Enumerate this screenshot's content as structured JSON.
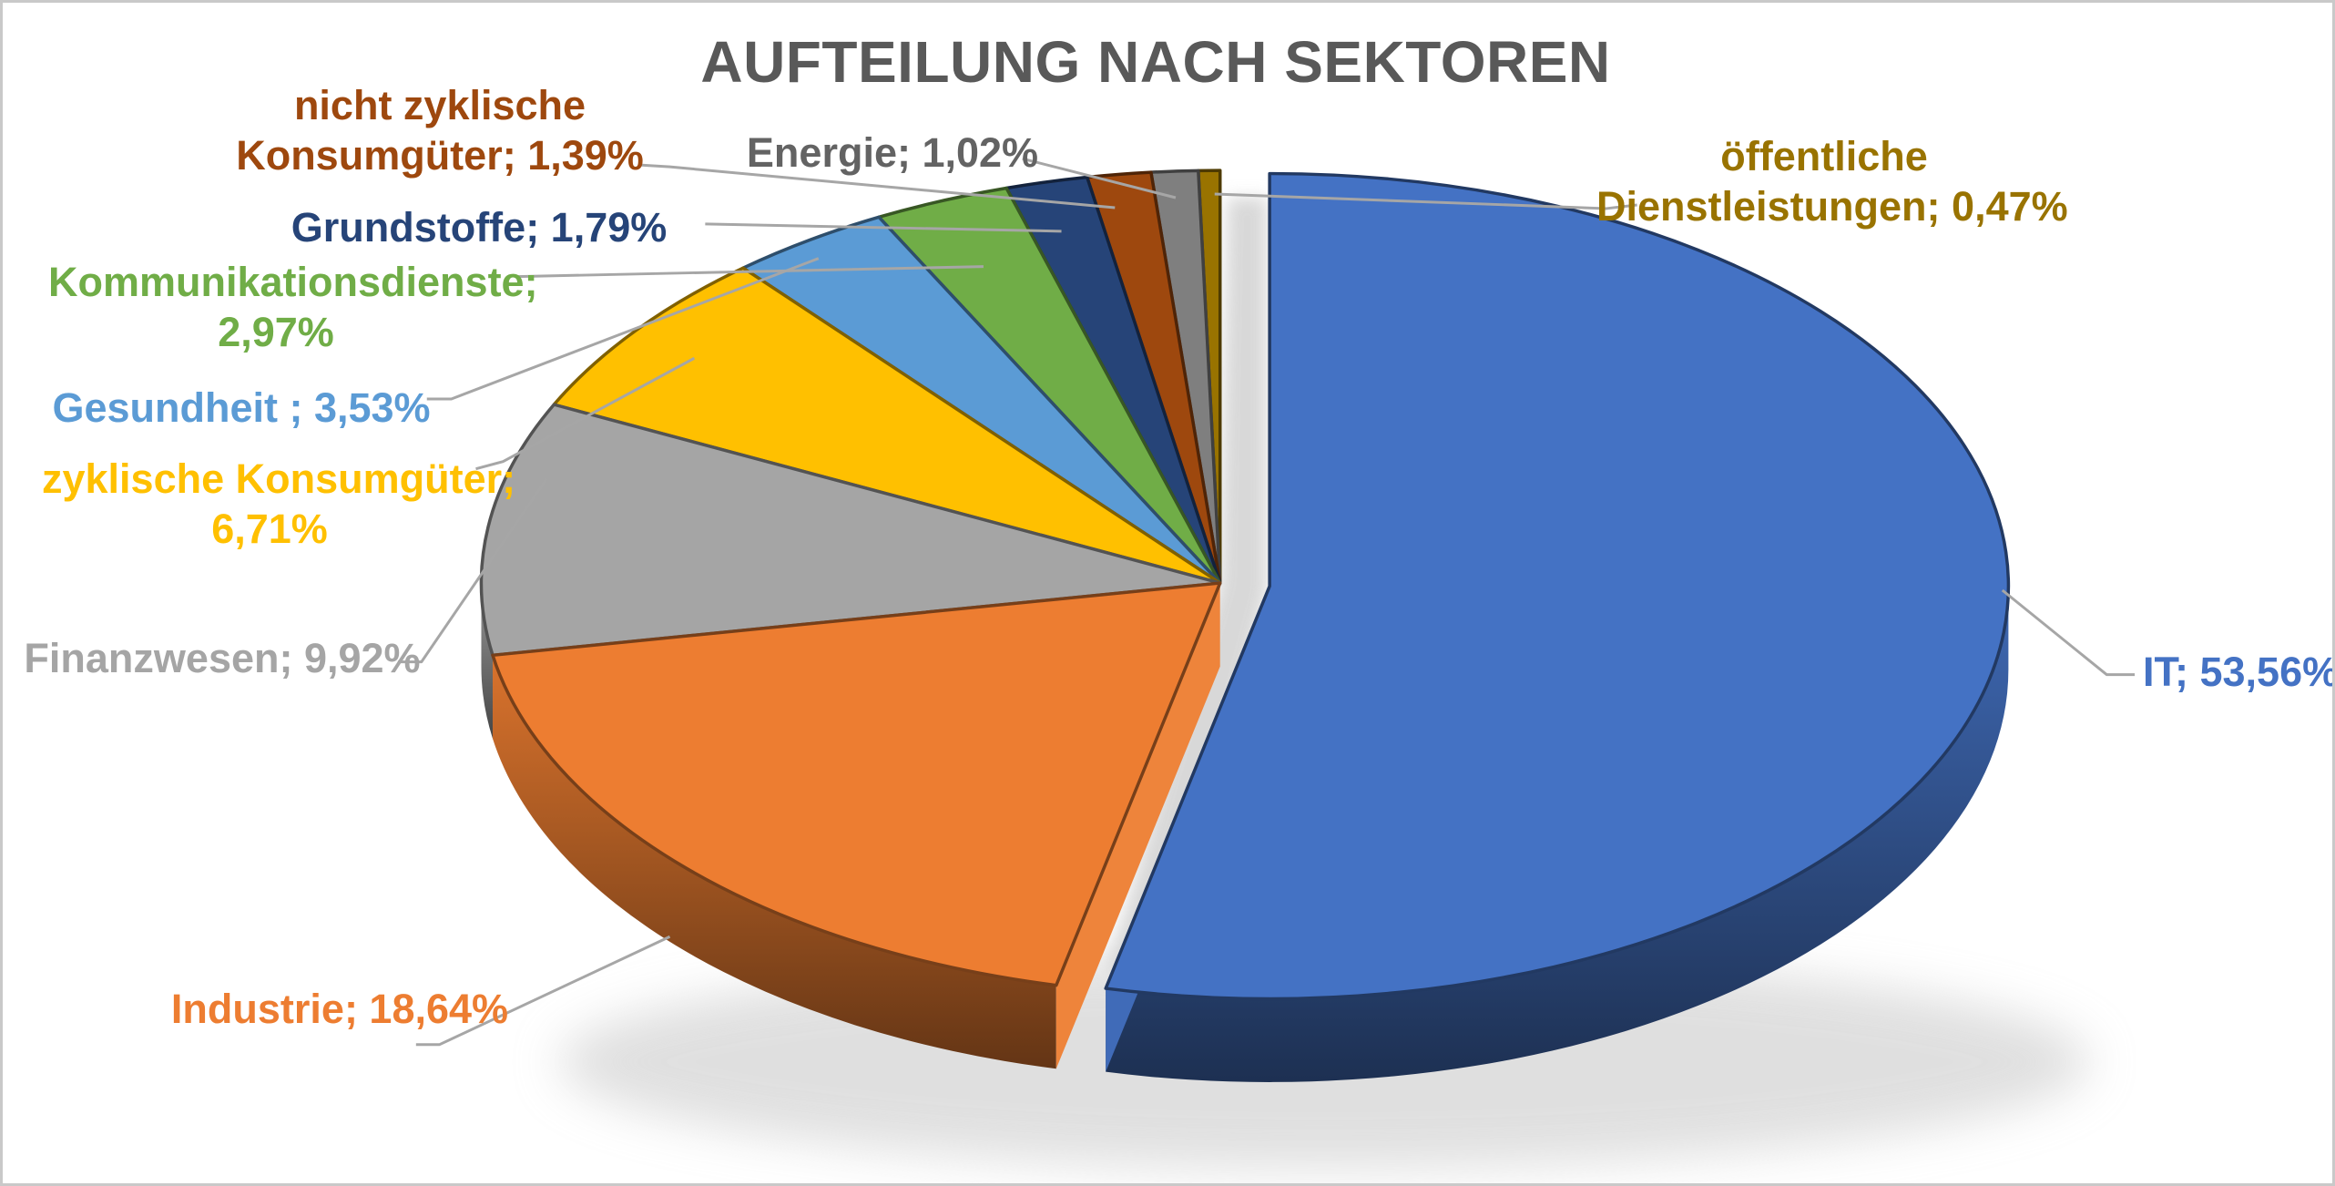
{
  "chart_data": {
    "type": "pie",
    "style": "3d-exploded-pie",
    "title": "AUFTEILUNG NACH SEKTOREN",
    "legend_position": "none",
    "grid": false,
    "slices": [
      {
        "label": "IT",
        "value_pct": 53.56,
        "display": "IT; 53,56%",
        "display_lines": [
          "IT; 53,56%"
        ],
        "color": "#4472C4",
        "exploded": true
      },
      {
        "label": "Industrie",
        "value_pct": 18.64,
        "display": "Industrie; 18,64%",
        "display_lines": [
          "Industrie; 18,64%"
        ],
        "color": "#ED7D31",
        "exploded": false
      },
      {
        "label": "Finanzwesen",
        "value_pct": 9.92,
        "display": "Finanzwesen; 9,92%",
        "display_lines": [
          "Finanzwesen; 9,92%"
        ],
        "color": "#A5A5A5",
        "exploded": false
      },
      {
        "label": "zyklische Konsumgüter",
        "value_pct": 6.71,
        "display": "zyklische Konsumgüter; 6,71%",
        "display_lines": [
          "zyklische Konsumgüter;",
          "6,71%"
        ],
        "color": "#FFC000",
        "exploded": false
      },
      {
        "label": "Gesundheit",
        "value_pct": 3.53,
        "display": "Gesundheit ; 3,53%",
        "display_lines": [
          "Gesundheit ; 3,53%"
        ],
        "color": "#5B9BD5",
        "exploded": false
      },
      {
        "label": "Kommunikationsdienste",
        "value_pct": 2.97,
        "display": "Kommunikationsdienste; 2,97%",
        "display_lines": [
          "Kommunikationsdienste;",
          "2,97%"
        ],
        "color": "#70AD47",
        "exploded": false
      },
      {
        "label": "Grundstoffe",
        "value_pct": 1.79,
        "display": "Grundstoffe; 1,79%",
        "display_lines": [
          "Grundstoffe; 1,79%"
        ],
        "color": "#264478",
        "exploded": false
      },
      {
        "label": "nicht zyklische Konsumgüter",
        "value_pct": 1.39,
        "display": "nicht zyklische Konsumgüter; 1,39%",
        "display_lines": [
          "nicht zyklische",
          "Konsumgüter; 1,39%"
        ],
        "color": "#9E480E",
        "exploded": false
      },
      {
        "label": "Energie",
        "value_pct": 1.02,
        "display": "Energie; 1,02%",
        "display_lines": [
          "Energie; 1,02%"
        ],
        "color": "#7F7F7F",
        "label_color": "#636363",
        "exploded": false
      },
      {
        "label": "öffentliche Dienstleistungen",
        "value_pct": 0.47,
        "display": "öffentliche Dienstleistungen; 0,47%",
        "display_lines": [
          "öffentliche",
          "Dienstleistungen; 0,47%"
        ],
        "color": "#997300",
        "exploded": false
      }
    ]
  },
  "theme": {
    "background": "#FFFFFF",
    "border_color": "#C9C9C9",
    "title_color": "#595959",
    "leader_line_color": "#A6A6A6"
  }
}
